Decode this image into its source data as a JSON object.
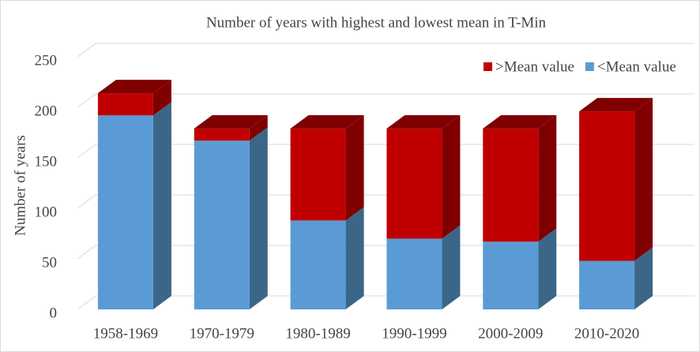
{
  "chart_data": {
    "type": "bar3d_stacked",
    "title": "Number of years with highest and lowest mean in T-Min",
    "y_label": "Number of years",
    "categories": [
      "1958-1969",
      "1970-1979",
      "1980-1989",
      "1990-1999",
      "2000-2009",
      "2010-2020"
    ],
    "series": [
      {
        "name": "<Mean value",
        "color": "#5b9bd5",
        "side": "#3b6688",
        "values": [
          192,
          167,
          88,
          70,
          67,
          48
        ]
      },
      {
        "name": ">Mean value",
        "color": "#c00000",
        "side": "#800000",
        "values": [
          22,
          12,
          91,
          109,
          112,
          148
        ]
      }
    ],
    "ylim": [
      0,
      250
    ],
    "yticks": [
      0,
      50,
      100,
      150,
      200,
      250
    ],
    "grid": true,
    "legend": "top-right"
  }
}
